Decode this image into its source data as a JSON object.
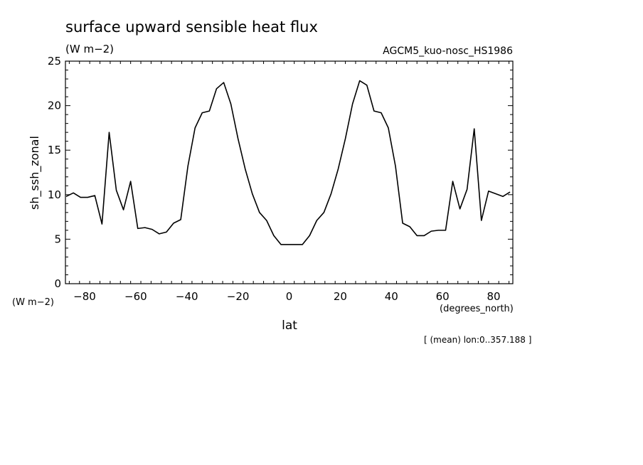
{
  "chart_data": {
    "type": "line",
    "title": "surface upward sensible heat flux",
    "subtitle": "(W m−2)",
    "run_label": "AGCM5_kuo-nosc_HS1986",
    "xlabel": "lat",
    "ylabel": "sh_ssh_zonal",
    "x_unit": "(degrees_north)",
    "y_unit": "(W m−2)",
    "footnote": "[ (mean) lon:0..357.188 ]",
    "xlim": [
      -87.5,
      87.5
    ],
    "ylim": [
      0,
      25
    ],
    "x_ticks": [
      -80,
      -60,
      -40,
      -20,
      0,
      20,
      40,
      60,
      80
    ],
    "x_tick_labels": [
      "−80",
      "−60",
      "−40",
      "−20",
      "0",
      "20",
      "40",
      "60",
      "80"
    ],
    "y_ticks": [
      0,
      5,
      10,
      15,
      20,
      25
    ],
    "y_tick_labels": [
      "0",
      "5",
      "10",
      "15",
      "20",
      "25"
    ],
    "series": [
      {
        "x": [
          -87.2,
          -84.4,
          -81.6,
          -78.8,
          -76.0,
          -73.2,
          -70.4,
          -67.6,
          -64.8,
          -62.0,
          -59.2,
          -56.4,
          -53.6,
          -50.8,
          -48.0,
          -45.2,
          -42.4,
          -39.6,
          -36.8,
          -34.0,
          -31.2,
          -28.4,
          -25.6,
          -22.8,
          -20.0,
          -17.2,
          -14.4,
          -11.6,
          -8.8,
          -6.0,
          -3.2,
          -0.4,
          2.4,
          5.2,
          8.0,
          10.8,
          13.6,
          16.4,
          19.2,
          22.0,
          24.8,
          27.6,
          30.4,
          33.2,
          36.0,
          38.8,
          41.6,
          44.4,
          47.2,
          50.0,
          52.8,
          55.6,
          58.4,
          61.2,
          64.0,
          66.8,
          69.6,
          72.4,
          75.2,
          78.0,
          80.8,
          83.6,
          86.4
        ],
        "values": [
          9.8,
          10.2,
          9.7,
          9.7,
          9.9,
          6.7,
          17.0,
          10.5,
          8.3,
          11.5,
          6.2,
          6.3,
          6.1,
          5.6,
          5.8,
          6.8,
          7.2,
          13.2,
          17.5,
          19.2,
          19.4,
          21.9,
          22.6,
          20.2,
          16.3,
          12.9,
          10.1,
          8.0,
          7.1,
          5.4,
          4.4,
          4.4,
          4.4,
          4.4,
          5.4,
          7.1,
          8.0,
          10.1,
          12.9,
          16.3,
          20.2,
          22.8,
          22.3,
          19.4,
          19.2,
          17.5,
          13.2,
          6.8,
          6.4,
          5.4,
          5.4,
          5.9,
          6.0,
          6.0,
          11.5,
          8.4,
          10.6,
          17.4,
          7.1,
          10.4,
          10.1,
          9.8,
          10.3
        ]
      }
    ],
    "grid": false,
    "legend": "none"
  }
}
